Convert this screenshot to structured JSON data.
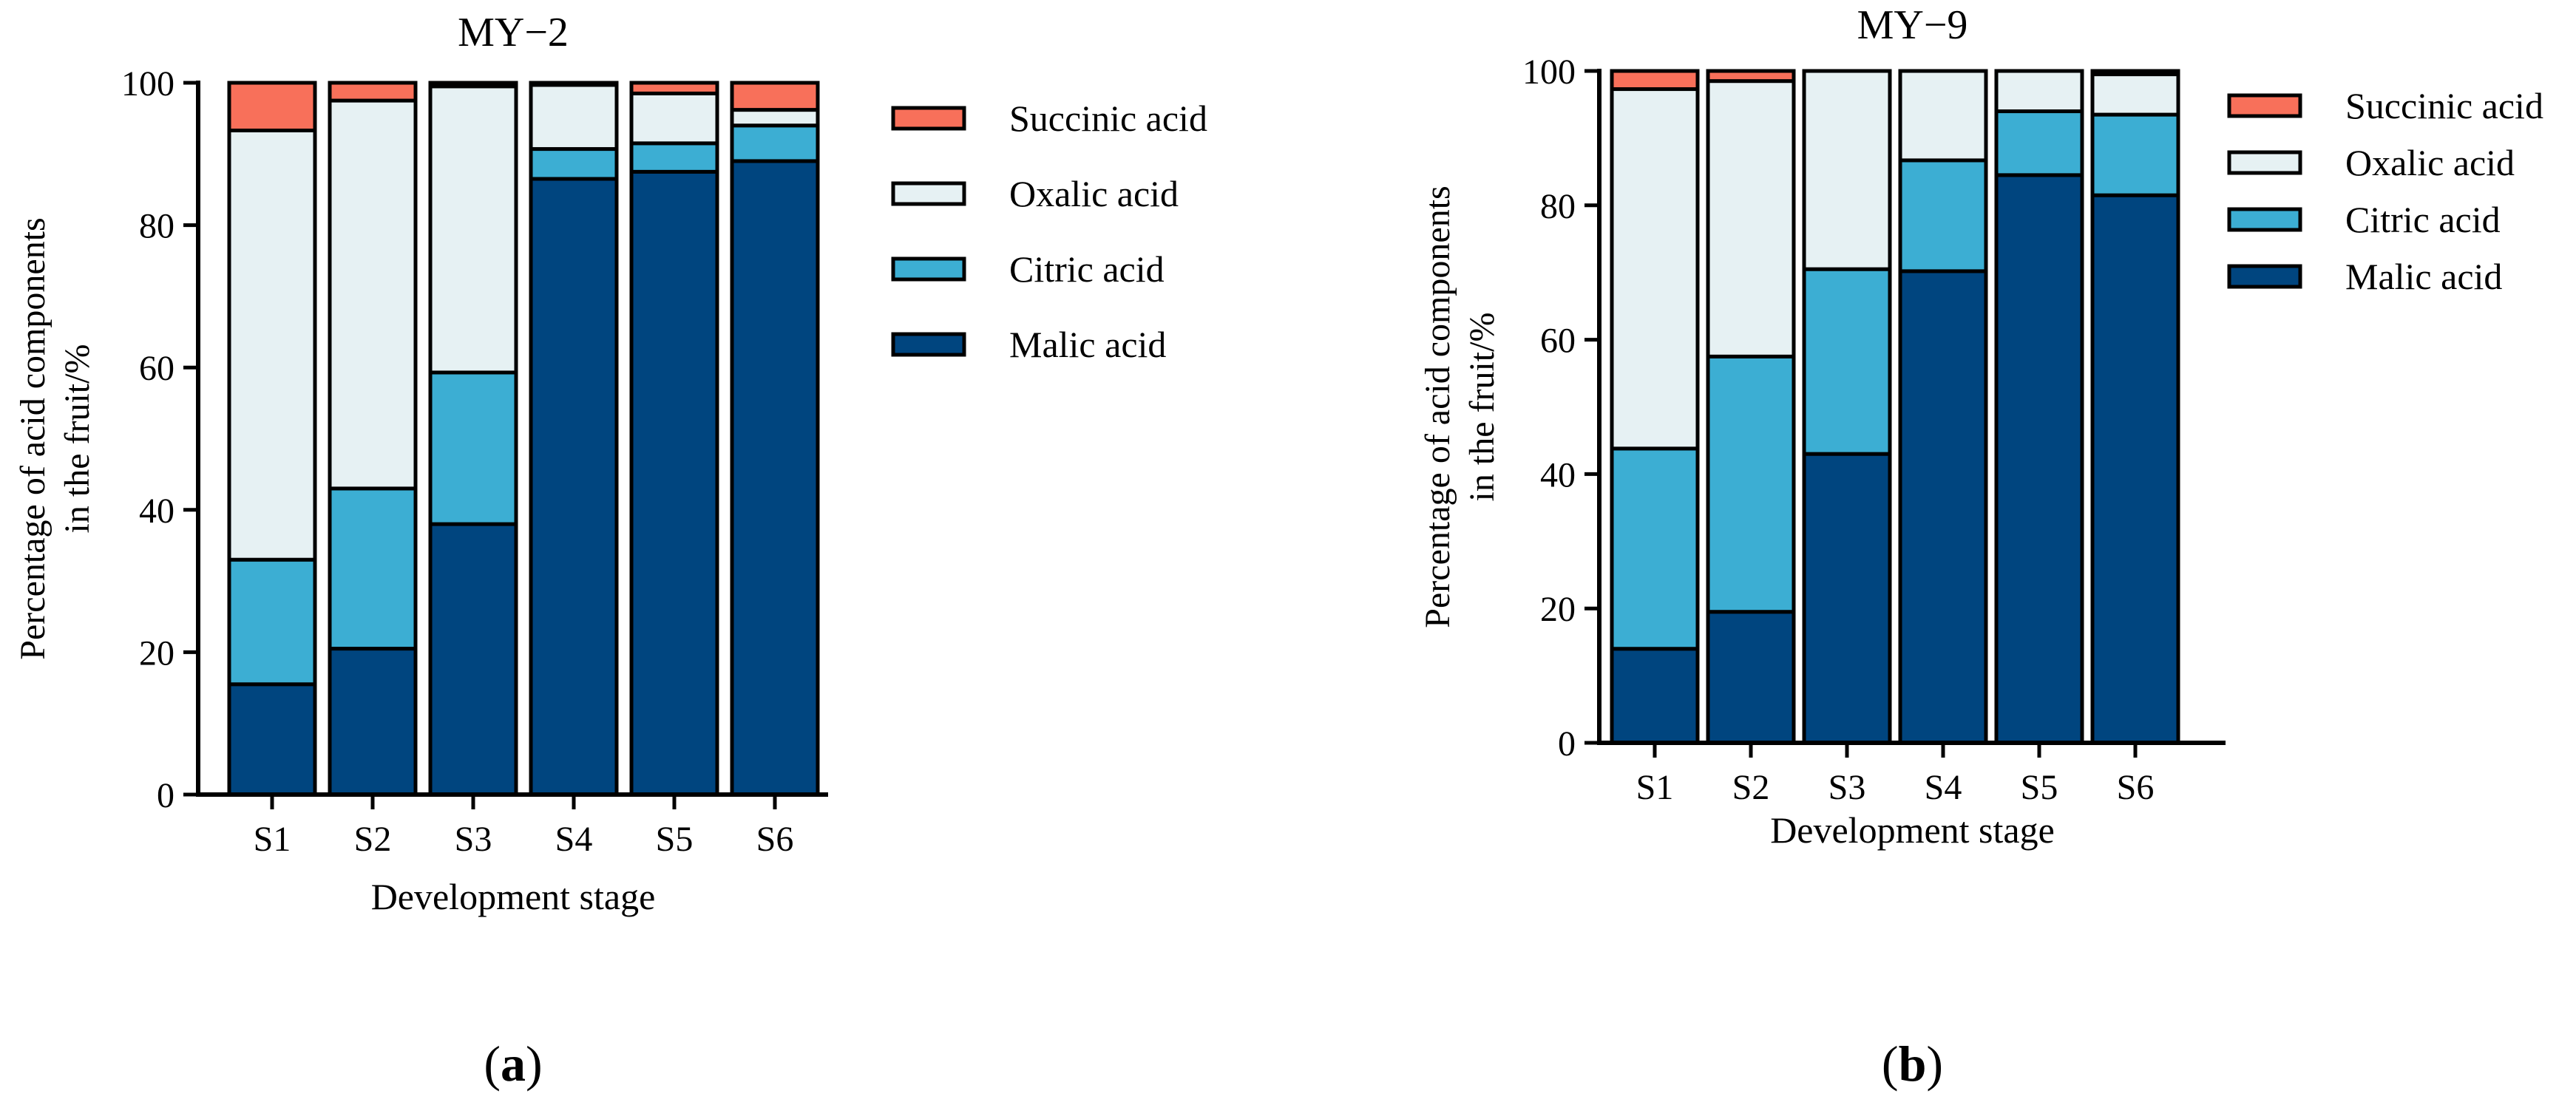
{
  "colors": {
    "Succinic acid": "#F8705A",
    "Oxalic acid": "#E6F1F3",
    "Citric acid": "#3CAED3",
    "Malic acid": "#00457F",
    "outline": "#000000"
  },
  "chart_data": [
    {
      "type": "bar",
      "stacked": true,
      "panel_label": "a",
      "title": "MY−2",
      "xlabel": "Development stage",
      "ylabel": [
        "Percentage of acid components",
        "in the fruit/%"
      ],
      "ylim": [
        0,
        100
      ],
      "yticks": [
        0,
        20,
        40,
        60,
        80,
        100
      ],
      "categories": [
        "S1",
        "S2",
        "S3",
        "S4",
        "S5",
        "S6"
      ],
      "legend": [
        "Succinic acid",
        "Oxalic acid",
        "Citric acid",
        "Malic acid"
      ],
      "legend_position": "right",
      "series": [
        {
          "name": "Malic acid",
          "values": [
            15.5,
            20.5,
            38,
            86.5,
            87.5,
            89
          ]
        },
        {
          "name": "Citric acid",
          "values": [
            17.5,
            22.5,
            21.3,
            4.2,
            4,
            5
          ]
        },
        {
          "name": "Oxalic acid",
          "values": [
            60.3,
            54.5,
            40.2,
            9,
            7,
            2.2
          ]
        },
        {
          "name": "Succinic acid",
          "values": [
            6.7,
            2.5,
            0.5,
            0.3,
            1.5,
            3.8
          ]
        }
      ]
    },
    {
      "type": "bar",
      "stacked": true,
      "panel_label": "b",
      "title": "MY−9",
      "xlabel": "Development stage",
      "ylabel": [
        "Percentage of acid components",
        "in the fruit/%"
      ],
      "ylim": [
        0,
        100
      ],
      "yticks": [
        0,
        20,
        40,
        60,
        80,
        100
      ],
      "categories": [
        "S1",
        "S2",
        "S3",
        "S4",
        "S5",
        "S6"
      ],
      "legend": [
        "Succinic acid",
        "Oxalic acid",
        "Citric acid",
        "Malic acid"
      ],
      "legend_position": "right",
      "series": [
        {
          "name": "Malic acid",
          "values": [
            14,
            19.5,
            43,
            70.2,
            84.5,
            81.5
          ]
        },
        {
          "name": "Citric acid",
          "values": [
            29.8,
            38,
            27.5,
            16.5,
            9.5,
            12
          ]
        },
        {
          "name": "Oxalic acid",
          "values": [
            53.5,
            41,
            29.5,
            13.3,
            6,
            6
          ]
        },
        {
          "name": "Succinic acid",
          "values": [
            2.7,
            1.5,
            0,
            0,
            0,
            0.5
          ]
        }
      ]
    }
  ]
}
